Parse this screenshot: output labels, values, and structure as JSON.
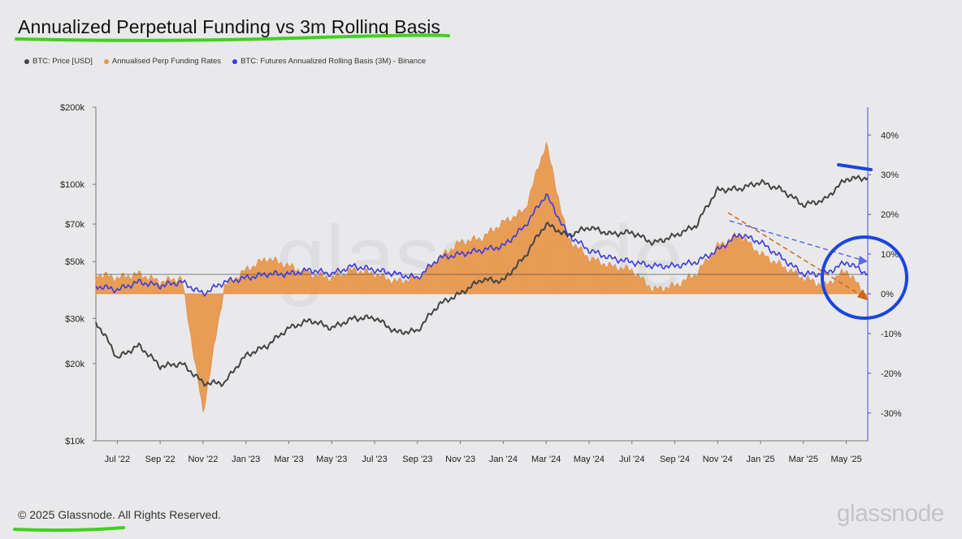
{
  "chart_data": {
    "type": "line",
    "title": "Annualized Perpetual Funding vs 3m Rolling Basis",
    "legend": [
      {
        "name": "BTC: Price [USD]",
        "color": "#444444",
        "marker": "dot"
      },
      {
        "name": "Annualised Perp Funding Rates",
        "color": "#e8964a",
        "marker": "dot"
      },
      {
        "name": "BTC: Futures Annualized Rolling Basis (3M) - Binance",
        "color": "#3b3be0",
        "marker": "dot"
      }
    ],
    "x_ticks": [
      "Jul '22",
      "Sep '22",
      "Nov '22",
      "Jan '23",
      "Mar '23",
      "May '23",
      "Jul '23",
      "Sep '23",
      "Nov '23",
      "Jan '24",
      "Mar '24",
      "May '24",
      "Jul '24",
      "Sep '24",
      "Nov '24",
      "Jan '25",
      "Mar '25",
      "May '25"
    ],
    "y_left": {
      "scale": "log",
      "ticks": [
        "$10k",
        "$20k",
        "$30k",
        "$50k",
        "$70k",
        "$100k",
        "$200k"
      ],
      "values": [
        10000,
        20000,
        30000,
        50000,
        70000,
        100000,
        200000
      ],
      "range": [
        10000,
        200000
      ]
    },
    "y_right": {
      "ticks": [
        "40%",
        "30%",
        "20%",
        "10%",
        "0%",
        "-10%",
        "-20%",
        "-30%"
      ],
      "values": [
        40,
        30,
        20,
        10,
        0,
        -10,
        -20,
        -30
      ],
      "range": [
        -37,
        47
      ]
    },
    "x_range": [
      "2022-06",
      "2025-06"
    ],
    "grid": false,
    "legend_position": "top-left",
    "series": [
      {
        "name": "BTC: Price [USD]",
        "axis": "left",
        "x": [
          "2022-06",
          "2022-07",
          "2022-08",
          "2022-09",
          "2022-10",
          "2022-11",
          "2022-12",
          "2023-01",
          "2023-02",
          "2023-03",
          "2023-04",
          "2023-05",
          "2023-06",
          "2023-07",
          "2023-08",
          "2023-09",
          "2023-10",
          "2023-11",
          "2023-12",
          "2024-01",
          "2024-02",
          "2024-03",
          "2024-04",
          "2024-05",
          "2024-06",
          "2024-07",
          "2024-08",
          "2024-09",
          "2024-10",
          "2024-11",
          "2024-12",
          "2025-01",
          "2025-02",
          "2025-03",
          "2025-04",
          "2025-05",
          "2025-06"
        ],
        "values": [
          29000,
          21000,
          23500,
          19500,
          20000,
          16800,
          16800,
          21500,
          23500,
          27500,
          29500,
          27500,
          30000,
          30200,
          26500,
          26800,
          34000,
          37500,
          42500,
          42000,
          52000,
          70000,
          63000,
          68000,
          64000,
          65000,
          59000,
          63000,
          69000,
          95000,
          96000,
          102000,
          95000,
          83000,
          87000,
          105000,
          106000
        ]
      },
      {
        "name": "Annualised Perp Funding Rates",
        "axis": "right",
        "type": "area",
        "x": [
          "2022-06",
          "2022-07",
          "2022-08",
          "2022-09",
          "2022-10",
          "2022-11",
          "2022-12",
          "2023-01",
          "2023-02",
          "2023-03",
          "2023-04",
          "2023-05",
          "2023-06",
          "2023-07",
          "2023-08",
          "2023-09",
          "2023-10",
          "2023-11",
          "2023-12",
          "2024-01",
          "2024-02",
          "2024-03",
          "2024-04",
          "2024-05",
          "2024-06",
          "2024-07",
          "2024-08",
          "2024-09",
          "2024-10",
          "2024-11",
          "2024-12",
          "2025-01",
          "2025-02",
          "2025-03",
          "2025-04",
          "2025-05",
          "2025-06"
        ],
        "values": [
          5,
          4,
          5,
          3,
          4,
          -30,
          2,
          6,
          9,
          7,
          5,
          4,
          6,
          5,
          3,
          4,
          9,
          13,
          14,
          18,
          21,
          38,
          14,
          9,
          7,
          6,
          1,
          2,
          5,
          12,
          15,
          10,
          7,
          4,
          2,
          6,
          -1
        ]
      },
      {
        "name": "BTC: Futures Annualized Rolling Basis (3M) - Binance",
        "axis": "right",
        "x": [
          "2022-06",
          "2022-07",
          "2022-08",
          "2022-09",
          "2022-10",
          "2022-11",
          "2022-12",
          "2023-01",
          "2023-02",
          "2023-03",
          "2023-04",
          "2023-05",
          "2023-06",
          "2023-07",
          "2023-08",
          "2023-09",
          "2023-10",
          "2023-11",
          "2023-12",
          "2024-01",
          "2024-02",
          "2024-03",
          "2024-04",
          "2024-05",
          "2024-06",
          "2024-07",
          "2024-08",
          "2024-09",
          "2024-10",
          "2024-11",
          "2024-12",
          "2025-01",
          "2025-02",
          "2025-03",
          "2025-04",
          "2025-05",
          "2025-06"
        ],
        "values": [
          2,
          1,
          3,
          2,
          3,
          0,
          3,
          4,
          5,
          5,
          6,
          5,
          7,
          6,
          5,
          4,
          9,
          10,
          11,
          12,
          17,
          25,
          15,
          11,
          9,
          8,
          7,
          7,
          8,
          11,
          15,
          13,
          9,
          5,
          5,
          8,
          5
        ]
      }
    ]
  },
  "footer": {
    "copyright": "© 2025 Glassnode. All Rights Reserved."
  },
  "brand": {
    "name": "glassnode"
  }
}
